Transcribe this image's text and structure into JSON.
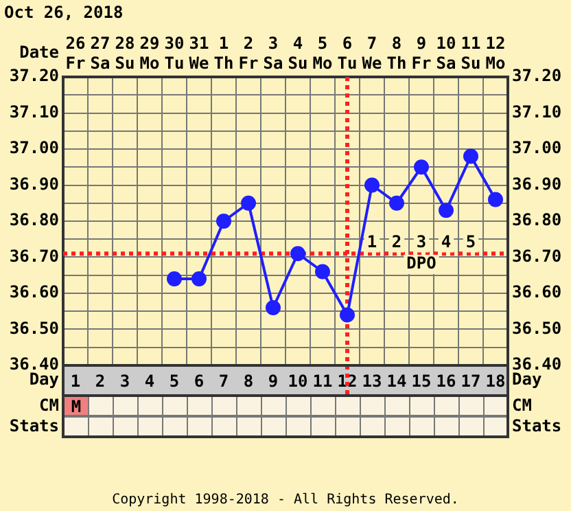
{
  "chart_data": {
    "type": "line",
    "title": "Oct 26, 2018",
    "xlabel": "Date",
    "x2label": "Day",
    "categories": [
      "26 Fr",
      "27 Sa",
      "28 Su",
      "29 Mo",
      "30 Tu",
      "31 We",
      "1 Th",
      "2 Fr",
      "3 Sa",
      "4 Su",
      "5 Mo",
      "6 Tu",
      "7 We",
      "8 Th",
      "9 Fr",
      "10 Sa",
      "11 Su",
      "12 Mo"
    ],
    "series": [
      {
        "color": "#1f1fff",
        "values": [
          null,
          null,
          null,
          null,
          36.64,
          36.64,
          36.8,
          36.85,
          36.56,
          36.71,
          36.66,
          36.54,
          36.9,
          36.85,
          36.95,
          36.83,
          36.98,
          36.86
        ]
      }
    ],
    "ylim": [
      36.4,
      37.2
    ],
    "yticks": [
      {
        "value": 36.4,
        "label": "36.40"
      },
      {
        "value": 36.45,
        "label": null
      },
      {
        "value": 36.5,
        "label": "36.50"
      },
      {
        "value": 36.55,
        "label": null
      },
      {
        "value": 36.6,
        "label": "36.60"
      },
      {
        "value": 36.65,
        "label": null
      },
      {
        "value": 36.7,
        "label": "36.70"
      },
      {
        "value": 36.75,
        "label": null
      },
      {
        "value": 36.8,
        "label": "36.80"
      },
      {
        "value": 36.85,
        "label": null
      },
      {
        "value": 36.9,
        "label": "36.90"
      },
      {
        "value": 36.95,
        "label": null
      },
      {
        "value": 37.0,
        "label": "37.00"
      },
      {
        "value": 37.05,
        "label": null
      },
      {
        "value": 37.1,
        "label": "37.10"
      },
      {
        "value": 37.15,
        "label": null
      },
      {
        "value": 37.2,
        "label": "37.20"
      }
    ],
    "y2lim": [
      36.4,
      37.2
    ],
    "y2ticks": [
      {
        "value": 36.4,
        "label": "36.40"
      },
      {
        "value": 36.5,
        "label": "36.50"
      },
      {
        "value": 36.6,
        "label": "36.60"
      },
      {
        "value": 36.7,
        "label": "36.70"
      },
      {
        "value": 36.8,
        "label": "36.80"
      },
      {
        "value": 36.9,
        "label": "36.90"
      },
      {
        "value": 37.0,
        "label": "37.00"
      },
      {
        "value": 37.1,
        "label": "37.10"
      },
      {
        "value": 37.2,
        "label": "37.20"
      }
    ],
    "x2lim": [
      0.5,
      18.5
    ],
    "x2ticks": [
      1,
      2,
      3,
      4,
      5,
      6,
      7,
      8,
      9,
      10,
      11,
      12,
      13,
      14,
      15,
      16,
      17,
      18
    ],
    "ref_lines": [
      {
        "axis": "y",
        "value": 36.71,
        "color": "#ff2020",
        "line_style": "dotted"
      },
      {
        "axis": "x",
        "value": "6 Tu",
        "color": "#ff2020",
        "line_style": "dotted"
      }
    ],
    "annotations": [
      {
        "text": "1",
        "x": "7 We",
        "y": 36.74
      },
      {
        "text": "2",
        "x": "8 Th",
        "y": 36.74
      },
      {
        "text": "3",
        "x": "9 Fr",
        "y": 36.74
      },
      {
        "text": "4",
        "x": "10 Sa",
        "y": 36.74
      },
      {
        "text": "5",
        "x": "11 Su",
        "y": 36.74
      },
      {
        "text": "DPO",
        "x": "9 Fr",
        "y": 36.68
      },
      "CM",
      "M",
      "Stats",
      "Copyright 1998-2018 - All Rights Reserved."
    ],
    "grid": true,
    "legend": false,
    "marker": "circle",
    "line_style": "solid"
  }
}
